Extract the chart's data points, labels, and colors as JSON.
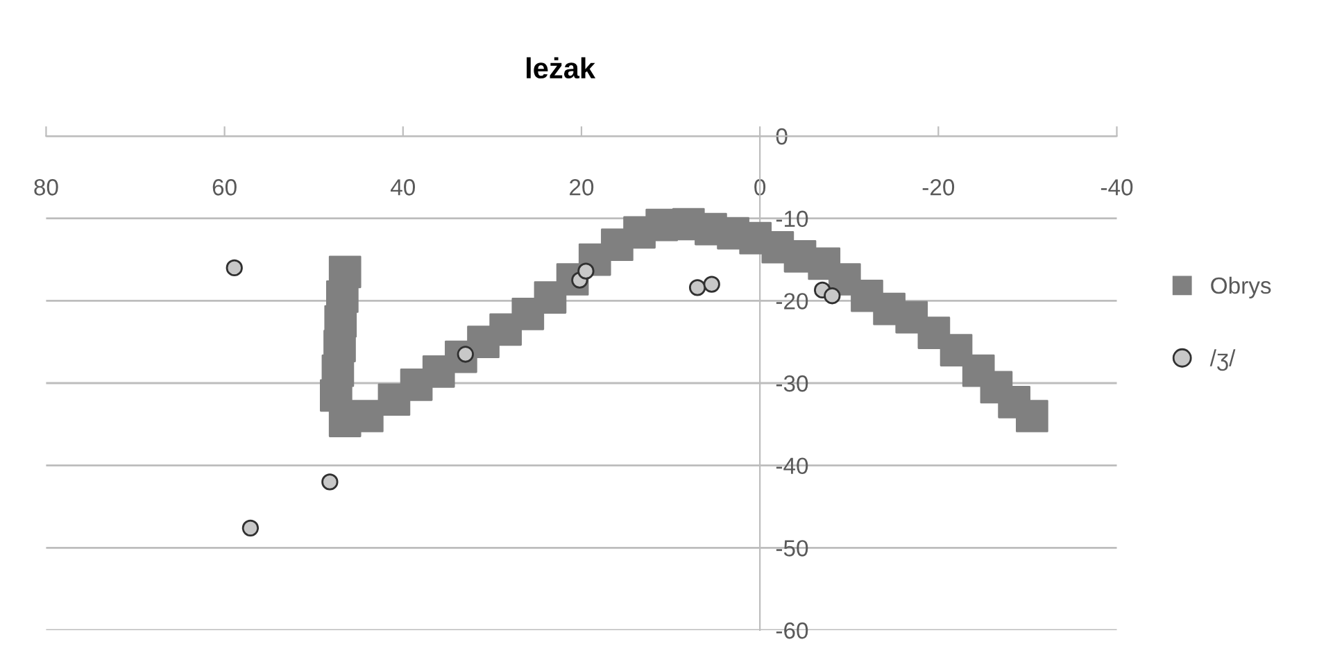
{
  "chart_data": {
    "type": "scatter",
    "title": "leżak",
    "xlim": [
      80,
      -40
    ],
    "ylim": [
      -60,
      0
    ],
    "xticks": [
      80,
      60,
      40,
      20,
      0,
      -20,
      -40
    ],
    "yticks": [
      0,
      -10,
      -20,
      -30,
      -40,
      -50,
      -60
    ],
    "grid": "y",
    "legend": "right",
    "series": [
      {
        "name": "Obrys",
        "color": "#808080",
        "marker": "square",
        "x": [
          46.5,
          46.8,
          47.0,
          47.1,
          47.3,
          47.5,
          46.5,
          44.0,
          41.0,
          38.5,
          36.0,
          33.5,
          31.0,
          28.5,
          26.0,
          23.5,
          21.0,
          18.5,
          16.0,
          13.5,
          11.0,
          8.0,
          5.5,
          3.0,
          0.5,
          -2.0,
          -4.5,
          -7.2,
          -9.5,
          -12.0,
          -14.5,
          -17.0,
          -19.5,
          -22.0,
          -24.5,
          -26.5,
          -28.5,
          -30.5
        ],
        "values": [
          -16.5,
          -19.5,
          -22.5,
          -25.5,
          -28.5,
          -31.5,
          -34.6,
          -34.0,
          -32.0,
          -30.2,
          -28.6,
          -26.8,
          -25.0,
          -23.5,
          -21.6,
          -19.6,
          -17.4,
          -15.0,
          -13.2,
          -11.7,
          -10.8,
          -10.7,
          -11.3,
          -11.8,
          -12.4,
          -13.5,
          -14.6,
          -15.5,
          -17.4,
          -19.4,
          -21.0,
          -22.0,
          -23.9,
          -26.0,
          -28.5,
          -30.5,
          -32.3,
          -34.0
        ]
      },
      {
        "name": "/ʒ/",
        "color": "#c8c8c8",
        "marker": "circle",
        "x": [
          58.9,
          48.2,
          57.1,
          33.0,
          20.2,
          19.5,
          7.0,
          5.4,
          -7.0,
          -8.1
        ],
        "values": [
          -16.0,
          -42.0,
          -47.6,
          -26.5,
          -17.5,
          -16.4,
          -18.4,
          -18.0,
          -18.7,
          -19.4
        ]
      }
    ]
  }
}
